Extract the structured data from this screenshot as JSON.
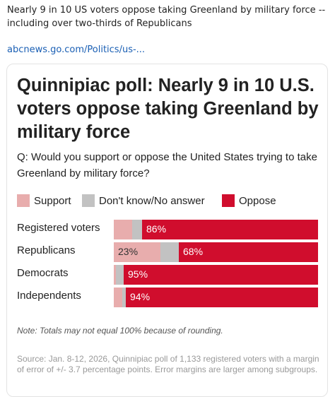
{
  "post": {
    "text": "Nearly 9 in 10 US voters oppose taking Greenland by military force -- including over two-thirds of Republicans",
    "link": "abcnews.go.com/Politics/us-..."
  },
  "card": {
    "title": "Quinnipiac poll: Nearly 9 in 10 U.S. voters oppose taking Greenland by military force",
    "question": "Q: Would you support or oppose the United States trying to take Greenland by military force?",
    "note": "Note: Totals may not equal 100% because of rounding.",
    "source": "Source: Jan. 8-12, 2026, Quinnipiac poll of 1,133 registered voters with a margin of error of +/- 3.7 percentage points. Error margins are larger among subgroups."
  },
  "colors": {
    "support": "#e8adad",
    "dont_know": "#c2c2c2",
    "oppose": "#d00d2d"
  },
  "chart_data": {
    "type": "bar",
    "orientation": "horizontal",
    "stacked": true,
    "categories": [
      "Registered voters",
      "Republicans",
      "Democrats",
      "Independents"
    ],
    "series": [
      {
        "name": "Support",
        "values": [
          9,
          23,
          1,
          4
        ]
      },
      {
        "name": "Don't know/No answer",
        "values": [
          5,
          9,
          4,
          2
        ]
      },
      {
        "name": "Oppose",
        "values": [
          86,
          68,
          95,
          94
        ]
      }
    ],
    "data_labels": [
      [
        null,
        null,
        "86%"
      ],
      [
        "23%",
        null,
        "68%"
      ],
      [
        null,
        null,
        "95%"
      ],
      [
        null,
        null,
        "94%"
      ]
    ],
    "legend_position": "top-left",
    "grid": false
  }
}
